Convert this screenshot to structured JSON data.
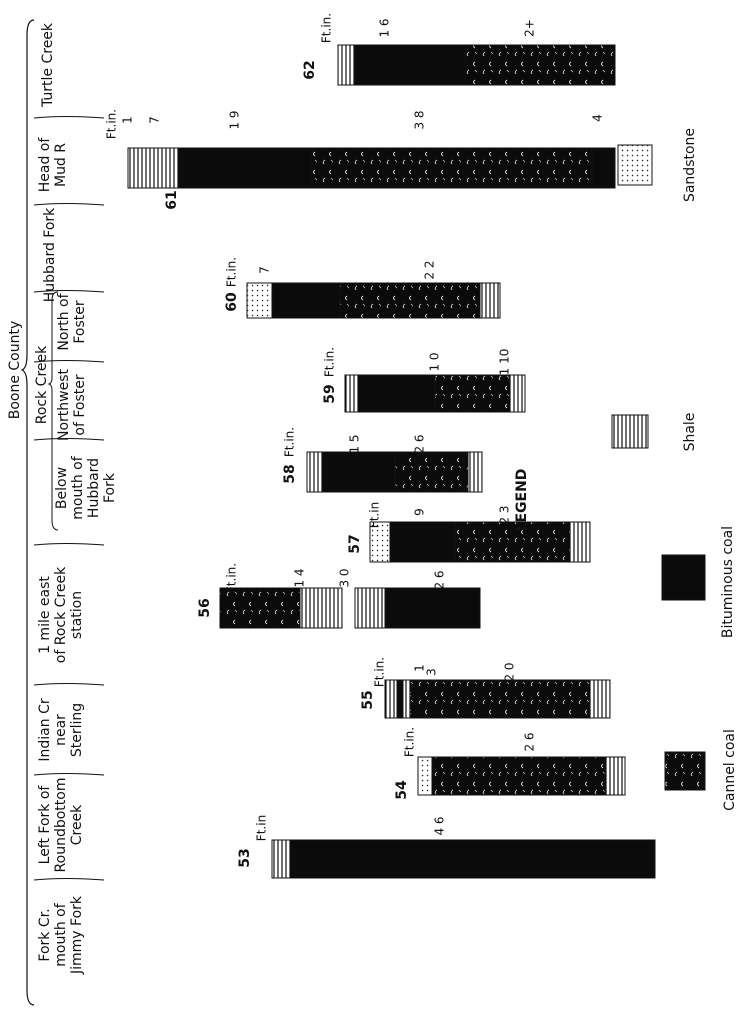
{
  "header": {
    "county": "Boone County",
    "group": "Rock Creek",
    "localities": [
      {
        "lines": [
          "Fork Cr.",
          "mouth of",
          "Jimmy Fork"
        ]
      },
      {
        "lines": [
          "Left Fork of",
          "Roundbottom",
          "Creek"
        ]
      },
      {
        "lines": [
          "Indian Cr",
          "near",
          "Sterling"
        ]
      },
      {
        "lines": [
          "1 mile east",
          "of Rock Creek",
          "station"
        ]
      },
      {
        "lines": [
          "Below",
          "mouth of",
          "Hubbard",
          "Fork"
        ]
      },
      {
        "lines": [
          "Northwest",
          "of Foster"
        ]
      },
      {
        "lines": [
          "North of",
          "Foster"
        ]
      },
      {
        "lines": [
          "Hubbard Fork"
        ]
      },
      {
        "lines": [
          "Head of",
          "Mud R"
        ]
      },
      {
        "lines": [
          "Turtle Creek"
        ]
      }
    ]
  },
  "columns": [
    {
      "number": "53",
      "unit": "Ft.in",
      "thicknesses": [
        "4 6"
      ]
    },
    {
      "number": "54",
      "unit": "Ft.in.",
      "thicknesses": [
        "2 6"
      ]
    },
    {
      "number": "55",
      "unit": "Ft.in.",
      "thicknesses": [
        "1",
        "3",
        "2 0"
      ]
    },
    {
      "number": "56",
      "unit": "Ft.in.",
      "thicknesses": [
        "1 4",
        "3 0",
        "2 6"
      ]
    },
    {
      "number": "57",
      "unit": "Ft.in",
      "thicknesses": [
        "9",
        "2 3"
      ]
    },
    {
      "number": "58",
      "unit": "Ft.in.",
      "thicknesses": [
        "1 5",
        "2 6"
      ]
    },
    {
      "number": "59",
      "unit": "Ft.in.",
      "thicknesses": [
        "1 0",
        "1 10"
      ]
    },
    {
      "number": "60",
      "unit": "Ft.in.",
      "thicknesses": [
        "7",
        "2 2"
      ]
    },
    {
      "number": "61",
      "unit": "Ft.in.",
      "thicknesses": [
        "1",
        "7",
        "1 9",
        "3 8",
        "4"
      ]
    },
    {
      "number": "62",
      "unit": "Ft.in.",
      "thicknesses": [
        "1 6",
        "2+"
      ]
    }
  ],
  "legend": {
    "title": "LEGEND",
    "items": [
      "Cannel coal",
      "Bituminous coal",
      "Shale",
      "Sandstone"
    ]
  }
}
